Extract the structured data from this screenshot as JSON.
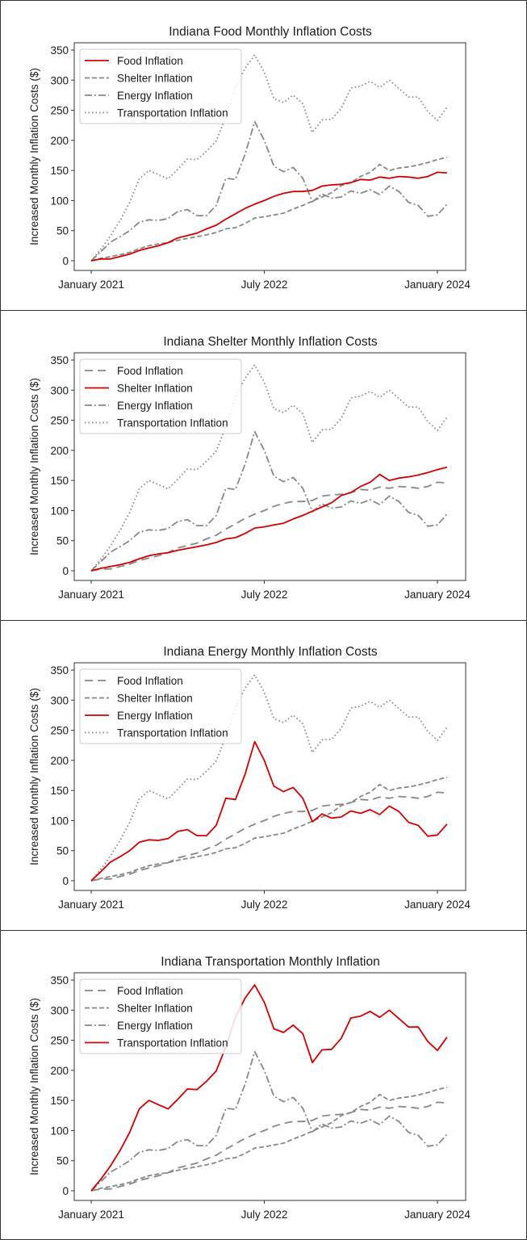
{
  "colors": {
    "highlight": "#d40000",
    "muted": "#888888",
    "axis": "#333333",
    "legend_border": "#cccccc"
  },
  "chart_data": [
    {
      "type": "line",
      "title": "Indiana Food Monthly Inflation Costs",
      "highlight": "Food Inflation",
      "xlabel": "",
      "ylabel": "Increased Monthly Inflation Costs ($)",
      "ylim": [
        -15,
        365
      ],
      "yticks": [
        0,
        50,
        100,
        150,
        200,
        250,
        300,
        350
      ],
      "xticks": [
        {
          "month_index": 0,
          "label": "January 2021"
        },
        {
          "month_index": 18,
          "label": "July 2022"
        },
        {
          "month_index": 36,
          "label": "January 2024"
        }
      ],
      "legend_position": "upper-left",
      "grid": false
    },
    {
      "type": "line",
      "title": "Indiana Shelter Monthly Inflation Costs",
      "highlight": "Shelter Inflation",
      "xlabel": "",
      "ylabel": "Increased Monthly Inflation Costs ($)",
      "ylim": [
        -15,
        365
      ],
      "yticks": [
        0,
        50,
        100,
        150,
        200,
        250,
        300,
        350
      ],
      "xticks": [
        {
          "month_index": 0,
          "label": "January 2021"
        },
        {
          "month_index": 18,
          "label": "July 2022"
        },
        {
          "month_index": 36,
          "label": "January 2024"
        }
      ],
      "legend_position": "upper-left",
      "grid": false
    },
    {
      "type": "line",
      "title": "Indiana Energy Monthly Inflation Costs",
      "highlight": "Energy Inflation",
      "xlabel": "",
      "ylabel": "Increased Monthly Inflation Costs ($)",
      "ylim": [
        -15,
        365
      ],
      "yticks": [
        0,
        50,
        100,
        150,
        200,
        250,
        300,
        350
      ],
      "xticks": [
        {
          "month_index": 0,
          "label": "January 2021"
        },
        {
          "month_index": 18,
          "label": "July 2022"
        },
        {
          "month_index": 36,
          "label": "January 2024"
        }
      ],
      "legend_position": "upper-left",
      "grid": false
    },
    {
      "type": "line",
      "title": "Indiana Transportation Monthly Inflation",
      "highlight": "Transportation Inflation",
      "xlabel": "",
      "ylabel": "Increased Monthly Inflation Costs ($)",
      "ylim": [
        -15,
        365
      ],
      "yticks": [
        0,
        50,
        100,
        150,
        200,
        250,
        300,
        350
      ],
      "xticks": [
        {
          "month_index": 0,
          "label": "January 2021"
        },
        {
          "month_index": 18,
          "label": "July 2022"
        },
        {
          "month_index": 36,
          "label": "January 2024"
        }
      ],
      "legend_position": "upper-left",
      "grid": false
    }
  ],
  "series": {
    "x_start": "January 2021",
    "x_end": "February 2024",
    "x_unit": "month",
    "list": [
      {
        "name": "Food Inflation",
        "values": [
          0,
          3,
          3,
          7,
          11,
          17,
          21,
          25,
          30,
          38,
          42,
          46,
          53,
          59,
          69,
          78,
          87,
          94,
          100,
          107,
          112,
          115,
          115,
          117,
          124,
          126,
          127,
          130,
          135,
          134,
          139,
          137,
          140,
          139,
          137,
          140,
          147,
          146
        ]
      },
      {
        "name": "Shelter Inflation",
        "values": [
          0,
          4,
          7,
          10,
          14,
          20,
          25,
          28,
          30,
          34,
          37,
          40,
          43,
          47,
          53,
          55,
          62,
          71,
          73,
          76,
          79,
          86,
          92,
          99,
          106,
          113,
          125,
          130,
          140,
          147,
          160,
          150,
          154,
          156,
          159,
          163,
          168,
          172
        ]
      },
      {
        "name": "Energy Inflation",
        "values": [
          0,
          15,
          31,
          40,
          50,
          64,
          68,
          67,
          70,
          82,
          85,
          75,
          75,
          92,
          137,
          135,
          177,
          231,
          200,
          157,
          148,
          155,
          137,
          98,
          111,
          104,
          106,
          116,
          112,
          118,
          110,
          124,
          115,
          97,
          92,
          74,
          76,
          94
        ]
      },
      {
        "name": "Transportation Inflation",
        "values": [
          0,
          19,
          41,
          67,
          97,
          136,
          150,
          143,
          136,
          152,
          169,
          168,
          182,
          199,
          239,
          288,
          320,
          342,
          313,
          269,
          263,
          275,
          261,
          213,
          234,
          235,
          253,
          287,
          290,
          298,
          288,
          300,
          286,
          272,
          272,
          248,
          233,
          255
        ]
      }
    ]
  },
  "legend": {
    "labels": [
      "Food Inflation",
      "Shelter Inflation",
      "Energy Inflation",
      "Transportation Inflation"
    ]
  }
}
